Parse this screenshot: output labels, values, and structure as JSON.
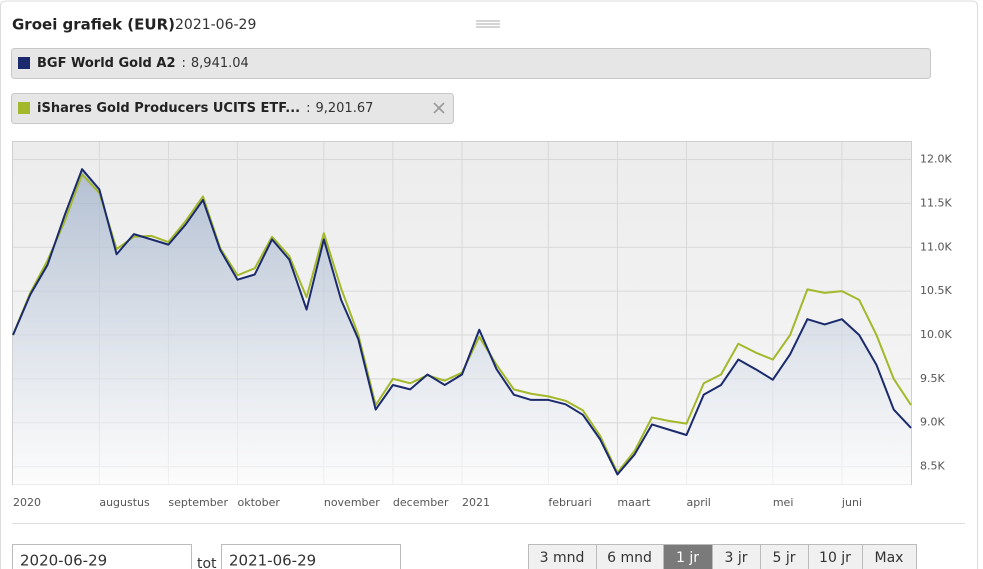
{
  "header": {
    "title": "Groei grafiek (EUR)",
    "date": "2021-06-29"
  },
  "chart_data": {
    "type": "line",
    "categories": [
      "2020",
      null,
      null,
      null,
      null,
      "augustus",
      null,
      null,
      null,
      "september",
      null,
      null,
      null,
      "oktober",
      null,
      null,
      null,
      null,
      "november",
      null,
      null,
      null,
      "december",
      null,
      null,
      null,
      "2021",
      null,
      null,
      null,
      null,
      "februari",
      null,
      null,
      null,
      "maart",
      null,
      null,
      null,
      "april",
      null,
      null,
      null,
      null,
      "mei",
      null,
      null,
      null,
      "juni",
      null,
      null,
      null,
      null
    ],
    "legend_separator": ":",
    "series": [
      {
        "name": "BGF World Gold A2",
        "color": "#1a2a6c",
        "value_labels": [
          "8,941.04"
        ],
        "values": [
          10000,
          10460,
          10800,
          11370,
          11890,
          11660,
          10920,
          11150,
          11090,
          11030,
          11260,
          11540,
          10970,
          10630,
          10690,
          11090,
          10860,
          10290,
          11090,
          10400,
          9950,
          9150,
          9430,
          9380,
          9550,
          9430,
          9550,
          10060,
          9610,
          9320,
          9260,
          9260,
          9210,
          9090,
          8810,
          8410,
          8640,
          8980,
          8920,
          8860,
          9320,
          9430,
          9720,
          9610,
          9490,
          9780,
          10180,
          10120,
          10180,
          10000,
          9660,
          9150,
          8941.04
        ]
      },
      {
        "name": "iShares Gold Producers UCITS ETF...",
        "color": "#a3b82a",
        "value_labels": [
          "9,201.67"
        ],
        "values": [
          10000,
          10480,
          10850,
          11300,
          11830,
          11620,
          10980,
          11120,
          11130,
          11060,
          11300,
          11580,
          10990,
          10680,
          10760,
          11120,
          10900,
          10430,
          11160,
          10530,
          10000,
          9200,
          9500,
          9450,
          9540,
          9480,
          9570,
          9980,
          9660,
          9380,
          9330,
          9300,
          9250,
          9140,
          8850,
          8430,
          8680,
          9060,
          9020,
          8990,
          9450,
          9550,
          9900,
          9800,
          9720,
          10000,
          10520,
          10480,
          10500,
          10400,
          10000,
          9500,
          9201.67
        ]
      }
    ],
    "ylim": [
      8290,
      12200
    ],
    "yticks": [
      {
        "value": 8500,
        "label": "8.5K"
      },
      {
        "value": 9000,
        "label": "9.0K"
      },
      {
        "value": 9500,
        "label": "9.5K"
      },
      {
        "value": 10000,
        "label": "10.0K"
      },
      {
        "value": 10500,
        "label": "10.5K"
      },
      {
        "value": 11000,
        "label": "11.0K"
      },
      {
        "value": 11500,
        "label": "11.5K"
      },
      {
        "value": 12000,
        "label": "12.0K"
      }
    ],
    "grid": true
  },
  "range": {
    "from": "2020-06-29",
    "to_word": "tot",
    "to": "2021-06-29"
  },
  "buttons": [
    {
      "label": "3 mnd",
      "active": false
    },
    {
      "label": "6 mnd",
      "active": false
    },
    {
      "label": "1 jr",
      "active": true
    },
    {
      "label": "3 jr",
      "active": false
    },
    {
      "label": "5 jr",
      "active": false
    },
    {
      "label": "10 jr",
      "active": false
    },
    {
      "label": "Max",
      "active": false
    }
  ]
}
